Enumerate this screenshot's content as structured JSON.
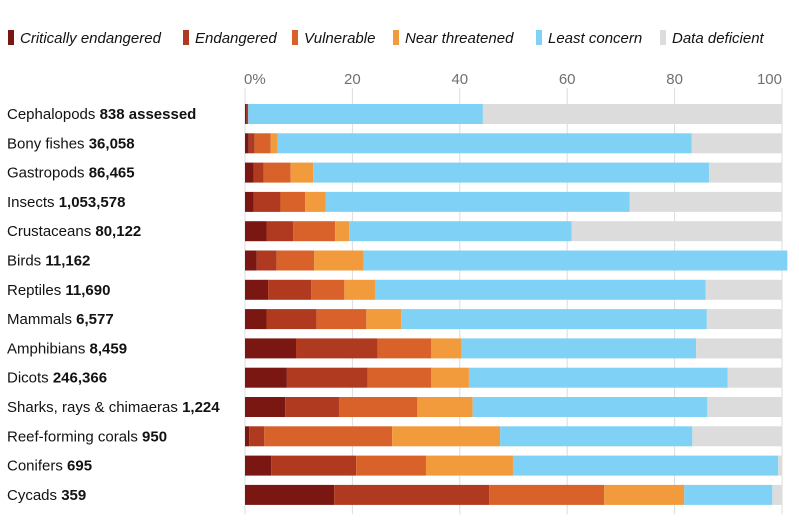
{
  "chart_data": {
    "type": "bar",
    "orientation": "horizontal",
    "stacked": true,
    "xlim": [
      0,
      100
    ],
    "xticks": [
      "0%",
      "20",
      "40",
      "60",
      "80",
      "100"
    ],
    "xtick_values": [
      0,
      20,
      40,
      60,
      80,
      100
    ],
    "grid": true,
    "legend_position": "top",
    "series": [
      {
        "name": "Critically endangered",
        "color": "#7b1712",
        "values": [
          0.3,
          0.7,
          1.6,
          1.6,
          4.0,
          2.2,
          4.3,
          4.0,
          9.5,
          7.8,
          7.5,
          0.8,
          4.9,
          16.6
        ]
      },
      {
        "name": "Endangered",
        "color": "#b03a1f",
        "values": [
          0.3,
          1.1,
          1.9,
          5.0,
          5.0,
          3.7,
          8.0,
          9.3,
          15.2,
          15.0,
          10.0,
          2.8,
          15.8,
          28.9
        ]
      },
      {
        "name": "Vulnerable",
        "color": "#d9622b",
        "values": [
          0,
          3.0,
          5.0,
          4.6,
          7.8,
          7.0,
          6.2,
          9.3,
          10.0,
          11.9,
          14.6,
          23.8,
          13.0,
          21.4
        ]
      },
      {
        "name": "Near threatened",
        "color": "#f19b3c",
        "values": [
          0,
          1.3,
          4.2,
          3.8,
          2.6,
          9.2,
          5.7,
          6.5,
          5.6,
          7.0,
          10.3,
          20.1,
          16.2,
          14.9
        ]
      },
      {
        "name": "Least concern",
        "color": "#7fd1f5",
        "values": [
          43.7,
          77.1,
          73.7,
          56.6,
          41.4,
          78.9,
          61.6,
          56.9,
          43.7,
          48.2,
          43.7,
          35.8,
          49.4,
          16.4
        ]
      },
      {
        "name": "Data deficient",
        "color": "#dcdcdc",
        "values": [
          55.7,
          16.8,
          13.6,
          28.4,
          39.2,
          0,
          14.2,
          14.0,
          16.0,
          10.1,
          13.9,
          16.7,
          0.7,
          1.8
        ]
      }
    ],
    "categories": [
      {
        "name": "Cephalopods",
        "count": "838 assessed"
      },
      {
        "name": "Bony fishes",
        "count": "36,058"
      },
      {
        "name": "Gastropods",
        "count": "86,465"
      },
      {
        "name": "Insects",
        "count": "1,053,578"
      },
      {
        "name": "Crustaceans",
        "count": "80,122"
      },
      {
        "name": "Birds",
        "count": "11,162"
      },
      {
        "name": "Reptiles",
        "count": "11,690"
      },
      {
        "name": "Mammals",
        "count": "6,577"
      },
      {
        "name": "Amphibians",
        "count": "8,459"
      },
      {
        "name": "Dicots",
        "count": "246,366"
      },
      {
        "name": "Sharks, rays & chimaeras",
        "count": "1,224"
      },
      {
        "name": "Reef-forming corals",
        "count": "950"
      },
      {
        "name": "Conifers",
        "count": "695"
      },
      {
        "name": "Cycads",
        "count": "359"
      }
    ]
  }
}
